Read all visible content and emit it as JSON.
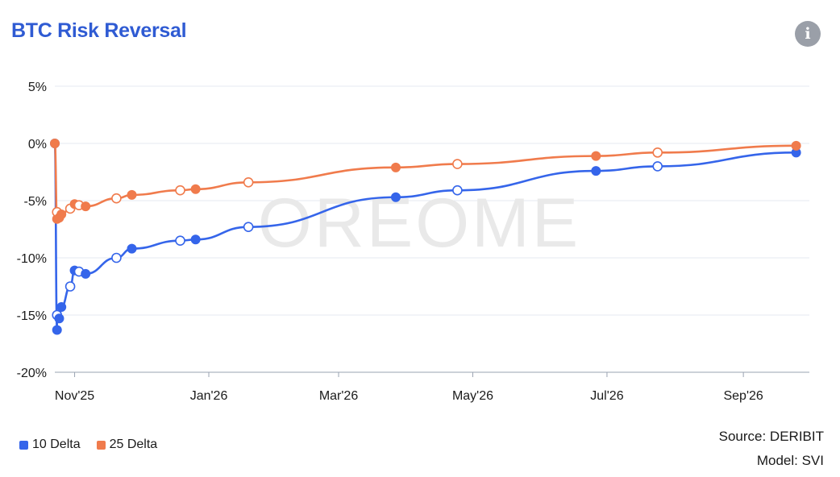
{
  "header": {
    "title": "BTC Risk Reversal",
    "info_icon": "info-icon",
    "info_glyph": "i"
  },
  "watermark": "OREOME",
  "footer": {
    "source": "Source: DERIBIT",
    "model": "Model: SVI"
  },
  "colors": {
    "series_10": "#3565ea",
    "series_25": "#f07b4c",
    "grid": "#e6e9f0",
    "axis": "#9aa3b2"
  },
  "chart_data": {
    "type": "line",
    "title": "BTC Risk Reversal",
    "xlabel": "",
    "ylabel": "",
    "y_unit": "%",
    "ylim": [
      -20,
      5
    ],
    "yticks": [
      5,
      0,
      -5,
      -10,
      -15,
      -20
    ],
    "ytick_labels": [
      "5%",
      "0%",
      "-5%",
      "-10%",
      "-15%",
      "-20%"
    ],
    "xlim": [
      "2025-10-23",
      "2026-10-01"
    ],
    "xticks": [
      "2025-11-01",
      "2026-01-01",
      "2026-03-01",
      "2026-05-01",
      "2026-07-01",
      "2026-09-01"
    ],
    "xtick_labels": [
      "Nov'25",
      "Jan'26",
      "Mar'26",
      "May'26",
      "Jul'26",
      "Sep'26"
    ],
    "grid": true,
    "legend_position": "bottom-left",
    "series": [
      {
        "name": "10 Delta",
        "points": [
          {
            "x": "2025-10-23",
            "y": 0.0,
            "filled": true
          },
          {
            "x": "2025-10-24",
            "y": -16.3,
            "filled": true
          },
          {
            "x": "2025-10-24",
            "y": -15.0,
            "filled": false
          },
          {
            "x": "2025-10-25",
            "y": -15.3,
            "filled": true
          },
          {
            "x": "2025-10-26",
            "y": -14.3,
            "filled": true
          },
          {
            "x": "2025-10-30",
            "y": -12.5,
            "filled": false
          },
          {
            "x": "2025-11-01",
            "y": -11.1,
            "filled": true
          },
          {
            "x": "2025-11-03",
            "y": -11.2,
            "filled": false
          },
          {
            "x": "2025-11-06",
            "y": -11.4,
            "filled": true
          },
          {
            "x": "2025-11-20",
            "y": -10.0,
            "filled": false
          },
          {
            "x": "2025-11-27",
            "y": -9.2,
            "filled": true
          },
          {
            "x": "2025-12-19",
            "y": -8.5,
            "filled": false
          },
          {
            "x": "2025-12-26",
            "y": -8.4,
            "filled": true
          },
          {
            "x": "2026-01-19",
            "y": -7.3,
            "filled": false
          },
          {
            "x": "2026-03-27",
            "y": -4.7,
            "filled": true
          },
          {
            "x": "2026-04-24",
            "y": -4.1,
            "filled": false
          },
          {
            "x": "2026-06-26",
            "y": -2.4,
            "filled": true
          },
          {
            "x": "2026-07-24",
            "y": -2.0,
            "filled": false
          },
          {
            "x": "2026-09-25",
            "y": -0.8,
            "filled": true
          }
        ]
      },
      {
        "name": "25 Delta",
        "points": [
          {
            "x": "2025-10-23",
            "y": 0.0,
            "filled": true
          },
          {
            "x": "2025-10-24",
            "y": -6.6,
            "filled": true
          },
          {
            "x": "2025-10-24",
            "y": -6.0,
            "filled": false
          },
          {
            "x": "2025-10-25",
            "y": -6.5,
            "filled": true
          },
          {
            "x": "2025-10-26",
            "y": -6.2,
            "filled": true
          },
          {
            "x": "2025-10-30",
            "y": -5.7,
            "filled": false
          },
          {
            "x": "2025-11-01",
            "y": -5.3,
            "filled": true
          },
          {
            "x": "2025-11-03",
            "y": -5.4,
            "filled": false
          },
          {
            "x": "2025-11-06",
            "y": -5.5,
            "filled": true
          },
          {
            "x": "2025-11-20",
            "y": -4.8,
            "filled": false
          },
          {
            "x": "2025-11-27",
            "y": -4.5,
            "filled": true
          },
          {
            "x": "2025-12-19",
            "y": -4.1,
            "filled": false
          },
          {
            "x": "2025-12-26",
            "y": -4.0,
            "filled": true
          },
          {
            "x": "2026-01-19",
            "y": -3.4,
            "filled": false
          },
          {
            "x": "2026-03-27",
            "y": -2.1,
            "filled": true
          },
          {
            "x": "2026-04-24",
            "y": -1.8,
            "filled": false
          },
          {
            "x": "2026-06-26",
            "y": -1.1,
            "filled": true
          },
          {
            "x": "2026-07-24",
            "y": -0.8,
            "filled": false
          },
          {
            "x": "2026-09-25",
            "y": -0.2,
            "filled": true
          }
        ]
      }
    ]
  }
}
